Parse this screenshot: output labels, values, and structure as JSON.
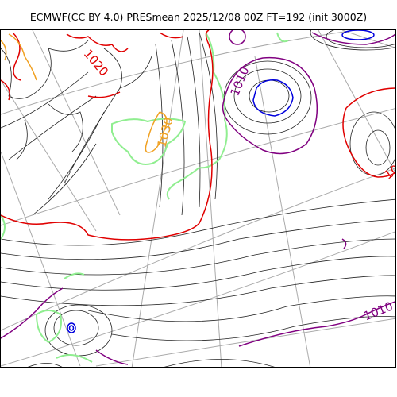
{
  "title": "ECMWF(CC BY 4.0) PRESmean 2025/12/08 00Z FT=192 (init 3000Z)",
  "colors": {
    "isobar": "#222222",
    "graticule": "#aaaaaa",
    "isobar_1010": "#800080",
    "isobar_1020": "#e00000",
    "isobar_1030": "#f0a020",
    "isobar_996": "#0000dd",
    "contour_green": "#90ee90"
  },
  "labels": {
    "label_1010_upper": "1010",
    "label_1010_lower": "1010",
    "label_1020_upper_left": "1020",
    "label_1020_right": "102",
    "label_1030": "1030"
  }
}
